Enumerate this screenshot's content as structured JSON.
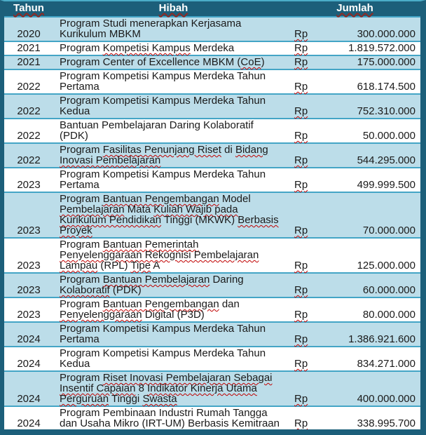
{
  "table": {
    "columns": [
      {
        "label": "Tahun"
      },
      {
        "label": "Hibah"
      },
      {
        "label": "Jumlah"
      }
    ],
    "currency_label": "Rp",
    "rows": [
      {
        "tahun": "2020",
        "shade": "blue",
        "jumlah": "300.000.000",
        "hibah_lines": [
          [
            {
              "t": "Program Studi menerapkan Kerjasama"
            }
          ],
          [
            {
              "t": "Kurikulum MBKM"
            }
          ]
        ]
      },
      {
        "tahun": "2021",
        "shade": "white",
        "jumlah": "1.819.572.000",
        "hibah_lines": [
          [
            {
              "t": "Program "
            },
            {
              "t": "Kompetisi Kampus",
              "sq": true
            },
            {
              "t": " Merdeka"
            }
          ]
        ]
      },
      {
        "tahun": "2021",
        "shade": "blue",
        "jumlah": "175.000.000",
        "hibah_lines": [
          [
            {
              "t": "Program Center of Excellence MBKM ("
            },
            {
              "t": "CoE",
              "sq": true
            },
            {
              "t": ")"
            }
          ]
        ]
      },
      {
        "tahun": "2022",
        "shade": "white",
        "jumlah": "618.174.500",
        "hibah_lines": [
          [
            {
              "t": "Program Kompetisi Kampus Merdeka Tahun"
            }
          ],
          [
            {
              "t": "Pertama"
            }
          ]
        ]
      },
      {
        "tahun": "2022",
        "shade": "blue",
        "jumlah": "752.310.000",
        "hibah_lines": [
          [
            {
              "t": "Program Kompetisi Kampus Merdeka Tahun"
            }
          ],
          [
            {
              "t": "Kedua"
            }
          ]
        ]
      },
      {
        "tahun": "2022",
        "shade": "white",
        "jumlah": "50.000.000",
        "hibah_lines": [
          [
            {
              "t": "Bantuan Pembelajaran Daring Kolaboratif"
            }
          ],
          [
            {
              "t": "(PDK)"
            }
          ]
        ]
      },
      {
        "tahun": "2022",
        "shade": "blue",
        "jumlah": "544.295.000",
        "hibah_lines": [
          [
            {
              "t": "Program "
            },
            {
              "t": "Fasilitas Penunjang Riset",
              "sq": true
            },
            {
              "t": " di "
            },
            {
              "t": "Bidang",
              "sq": true
            }
          ],
          [
            {
              "t": "Inovasi Pembelajaran",
              "sq": true
            }
          ]
        ]
      },
      {
        "tahun": "2023",
        "shade": "white",
        "jumlah": "499.999.500",
        "hibah_lines": [
          [
            {
              "t": "Program Kompetisi Kampus Merdeka Tahun"
            }
          ],
          [
            {
              "t": "Pertama"
            }
          ]
        ]
      },
      {
        "tahun": "2023",
        "shade": "blue",
        "jumlah": "70.000.000",
        "hibah_lines": [
          [
            {
              "t": "Program "
            },
            {
              "t": "Bantuan Pengembangan",
              "sq": true
            },
            {
              "t": " Model"
            }
          ],
          [
            {
              "t": "Pembelajaran",
              "sq": true
            },
            {
              "t": " Mata "
            },
            {
              "t": "Kuliah Wajib pada",
              "sq": true
            }
          ],
          [
            {
              "t": "Kurikulum Pendidikan",
              "sq": true
            },
            {
              "t": " Tinggi (MKWK) "
            },
            {
              "t": "Berbasis",
              "sq": true
            }
          ],
          [
            {
              "t": "Proyek",
              "sq": true
            }
          ]
        ]
      },
      {
        "tahun": "2023",
        "shade": "white",
        "jumlah": "125.000.000",
        "hibah_lines": [
          [
            {
              "t": "Program "
            },
            {
              "t": "Bantuan Pemerintah",
              "sq": true
            }
          ],
          [
            {
              "t": "Penyelenggaraan Rekognisi Pembelajaran",
              "sq": true
            }
          ],
          [
            {
              "t": "Lampau",
              "sq": true
            },
            {
              "t": " (RPL) "
            },
            {
              "t": "Tipe",
              "sq": true
            },
            {
              "t": " A"
            }
          ]
        ]
      },
      {
        "tahun": "2023",
        "shade": "blue",
        "jumlah": "60.000.000",
        "hibah_lines": [
          [
            {
              "t": "Program "
            },
            {
              "t": "Bantuan Pembelajaran",
              "sq": true
            },
            {
              "t": " Daring"
            }
          ],
          [
            {
              "t": "Kolaboratif",
              "sq": true
            },
            {
              "t": " (PDK)"
            }
          ]
        ]
      },
      {
        "tahun": "2023",
        "shade": "white",
        "jumlah": "80.000.000",
        "hibah_lines": [
          [
            {
              "t": "Program "
            },
            {
              "t": "Bantuan Pengembangan",
              "sq": true
            },
            {
              "t": " dan"
            }
          ],
          [
            {
              "t": "Penyelenggaraan",
              "sq": true
            },
            {
              "t": " Digital (P3D)"
            }
          ]
        ]
      },
      {
        "tahun": "2024",
        "shade": "blue",
        "jumlah": "1.386.921.600",
        "hibah_lines": [
          [
            {
              "t": "Program Kompetisi Kampus Merdeka Tahun"
            }
          ],
          [
            {
              "t": "Pertama"
            }
          ]
        ]
      },
      {
        "tahun": "2024",
        "shade": "white",
        "jumlah": "834.271.000",
        "hibah_lines": [
          [
            {
              "t": "Program Kompetisi Kampus Merdeka Tahun"
            }
          ],
          [
            {
              "t": "Kedua"
            }
          ]
        ]
      },
      {
        "tahun": "2024",
        "shade": "blue",
        "jumlah": "400.000.000",
        "hibah_lines": [
          [
            {
              "t": "Program "
            },
            {
              "t": "Riset Inovasi Pembelajaran Sebagai",
              "sq": true
            }
          ],
          [
            {
              "t": "Insentif Capaian",
              "sq": true
            },
            {
              "t": " 8 "
            },
            {
              "t": "Indikator Kinerja Utama",
              "sq": true
            }
          ],
          [
            {
              "t": "Perguruan",
              "sq": true
            },
            {
              "t": " Tinggi "
            },
            {
              "t": "Swasta",
              "sq": true
            }
          ]
        ]
      },
      {
        "tahun": "2024",
        "shade": "white",
        "jumlah": "338.995.700",
        "hibah_lines": [
          [
            {
              "t": "Program Pembinaan Industri Rumah Tangga"
            }
          ],
          [
            {
              "t": "dan Usaha Mikro (IRT-UM) Berbasis Kemitraan"
            }
          ]
        ]
      }
    ]
  },
  "colors": {
    "header_bg": "#1c5f7a",
    "row_blue": "#bcdde9",
    "row_white": "#ffffff",
    "border": "#44a5c6",
    "top_border": "#4badc8",
    "text": "#1a1a1a",
    "header_text": "#ffffff",
    "squiggle": "#c00000",
    "header_underline": "#8e2a25"
  }
}
